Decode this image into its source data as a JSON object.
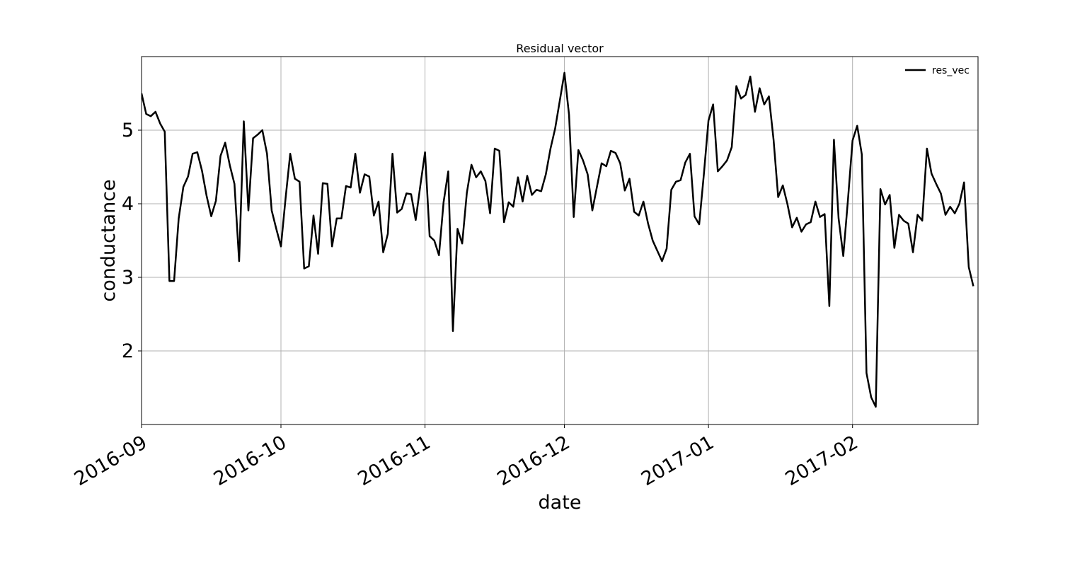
{
  "chart_data": {
    "type": "line",
    "title": "Residual vector",
    "xlabel": "date",
    "ylabel": "conductance",
    "xlim": [
      "2016-09-01",
      "2017-02-28"
    ],
    "ylim": [
      1.0,
      6.0
    ],
    "grid": true,
    "legend_position": "top-right",
    "x_ticks": [
      "2016-09",
      "2016-10",
      "2016-11",
      "2016-12",
      "2017-01",
      "2017-02"
    ],
    "y_ticks": [
      "2",
      "3",
      "4",
      "5"
    ],
    "line_color": "#000000",
    "series": [
      {
        "name": "res_vec",
        "values": [
          [
            "2016-09-01",
            5.5
          ],
          [
            "2016-09-02",
            5.22
          ],
          [
            "2016-09-03",
            5.19
          ],
          [
            "2016-09-04",
            5.25
          ],
          [
            "2016-09-05",
            5.09
          ],
          [
            "2016-09-06",
            4.98
          ],
          [
            "2016-09-07",
            2.95
          ],
          [
            "2016-09-08",
            2.95
          ],
          [
            "2016-09-09",
            3.8
          ],
          [
            "2016-09-10",
            4.23
          ],
          [
            "2016-09-11",
            4.37
          ],
          [
            "2016-09-12",
            4.68
          ],
          [
            "2016-09-13",
            4.7
          ],
          [
            "2016-09-14",
            4.45
          ],
          [
            "2016-09-15",
            4.11
          ],
          [
            "2016-09-16",
            3.83
          ],
          [
            "2016-09-17",
            4.04
          ],
          [
            "2016-09-18",
            4.65
          ],
          [
            "2016-09-19",
            4.83
          ],
          [
            "2016-09-20",
            4.52
          ],
          [
            "2016-09-21",
            4.27
          ],
          [
            "2016-09-22",
            3.22
          ],
          [
            "2016-09-23",
            5.12
          ],
          [
            "2016-09-24",
            3.91
          ],
          [
            "2016-09-25",
            4.89
          ],
          [
            "2016-09-26",
            4.94
          ],
          [
            "2016-09-27",
            5.0
          ],
          [
            "2016-09-28",
            4.68
          ],
          [
            "2016-09-29",
            3.91
          ],
          [
            "2016-09-30",
            3.66
          ],
          [
            "2016-10-01",
            3.42
          ],
          [
            "2016-10-02",
            4.08
          ],
          [
            "2016-10-03",
            4.68
          ],
          [
            "2016-10-04",
            4.34
          ],
          [
            "2016-10-05",
            4.3
          ],
          [
            "2016-10-06",
            3.12
          ],
          [
            "2016-10-07",
            3.15
          ],
          [
            "2016-10-08",
            3.84
          ],
          [
            "2016-10-09",
            3.32
          ],
          [
            "2016-10-10",
            4.28
          ],
          [
            "2016-10-11",
            4.27
          ],
          [
            "2016-10-12",
            3.42
          ],
          [
            "2016-10-13",
            3.8
          ],
          [
            "2016-10-14",
            3.8
          ],
          [
            "2016-10-15",
            4.24
          ],
          [
            "2016-10-16",
            4.22
          ],
          [
            "2016-10-17",
            4.68
          ],
          [
            "2016-10-18",
            4.15
          ],
          [
            "2016-10-19",
            4.4
          ],
          [
            "2016-10-20",
            4.37
          ],
          [
            "2016-10-21",
            3.84
          ],
          [
            "2016-10-22",
            4.03
          ],
          [
            "2016-10-23",
            3.34
          ],
          [
            "2016-10-24",
            3.59
          ],
          [
            "2016-10-25",
            4.68
          ],
          [
            "2016-10-26",
            3.88
          ],
          [
            "2016-10-27",
            3.93
          ],
          [
            "2016-10-28",
            4.14
          ],
          [
            "2016-10-29",
            4.13
          ],
          [
            "2016-10-30",
            3.78
          ],
          [
            "2016-10-31",
            4.25
          ],
          [
            "2016-11-01",
            4.7
          ],
          [
            "2016-11-02",
            3.56
          ],
          [
            "2016-11-03",
            3.5
          ],
          [
            "2016-11-04",
            3.3
          ],
          [
            "2016-11-05",
            4.02
          ],
          [
            "2016-11-06",
            4.44
          ],
          [
            "2016-11-07",
            2.27
          ],
          [
            "2016-11-08",
            3.66
          ],
          [
            "2016-11-09",
            3.46
          ],
          [
            "2016-11-10",
            4.15
          ],
          [
            "2016-11-11",
            4.53
          ],
          [
            "2016-11-12",
            4.36
          ],
          [
            "2016-11-13",
            4.44
          ],
          [
            "2016-11-14",
            4.31
          ],
          [
            "2016-11-15",
            3.87
          ],
          [
            "2016-11-16",
            4.75
          ],
          [
            "2016-11-17",
            4.72
          ],
          [
            "2016-11-18",
            3.75
          ],
          [
            "2016-11-19",
            4.02
          ],
          [
            "2016-11-20",
            3.96
          ],
          [
            "2016-11-21",
            4.36
          ],
          [
            "2016-11-22",
            4.03
          ],
          [
            "2016-11-23",
            4.38
          ],
          [
            "2016-11-24",
            4.12
          ],
          [
            "2016-11-25",
            4.19
          ],
          [
            "2016-11-26",
            4.17
          ],
          [
            "2016-11-27",
            4.4
          ],
          [
            "2016-11-28",
            4.75
          ],
          [
            "2016-11-29",
            5.02
          ],
          [
            "2016-11-30",
            5.4
          ],
          [
            "2016-12-01",
            5.78
          ],
          [
            "2016-12-02",
            5.21
          ],
          [
            "2016-12-03",
            3.82
          ],
          [
            "2016-12-04",
            4.73
          ],
          [
            "2016-12-05",
            4.59
          ],
          [
            "2016-12-06",
            4.4
          ],
          [
            "2016-12-07",
            3.91
          ],
          [
            "2016-12-08",
            4.23
          ],
          [
            "2016-12-09",
            4.55
          ],
          [
            "2016-12-10",
            4.51
          ],
          [
            "2016-12-11",
            4.72
          ],
          [
            "2016-12-12",
            4.69
          ],
          [
            "2016-12-13",
            4.55
          ],
          [
            "2016-12-14",
            4.18
          ],
          [
            "2016-12-15",
            4.34
          ],
          [
            "2016-12-16",
            3.89
          ],
          [
            "2016-12-17",
            3.84
          ],
          [
            "2016-12-18",
            4.03
          ],
          [
            "2016-12-19",
            3.73
          ],
          [
            "2016-12-20",
            3.5
          ],
          [
            "2016-12-21",
            3.36
          ],
          [
            "2016-12-22",
            3.22
          ],
          [
            "2016-12-23",
            3.39
          ],
          [
            "2016-12-24",
            4.19
          ],
          [
            "2016-12-25",
            4.3
          ],
          [
            "2016-12-26",
            4.32
          ],
          [
            "2016-12-27",
            4.56
          ],
          [
            "2016-12-28",
            4.68
          ],
          [
            "2016-12-29",
            3.83
          ],
          [
            "2016-12-30",
            3.72
          ],
          [
            "2016-12-31",
            4.4
          ],
          [
            "2017-01-01",
            5.13
          ],
          [
            "2017-01-02",
            5.35
          ],
          [
            "2017-01-03",
            4.44
          ],
          [
            "2017-01-04",
            4.51
          ],
          [
            "2017-01-05",
            4.59
          ],
          [
            "2017-01-06",
            4.77
          ],
          [
            "2017-01-07",
            5.6
          ],
          [
            "2017-01-08",
            5.43
          ],
          [
            "2017-01-09",
            5.48
          ],
          [
            "2017-01-10",
            5.73
          ],
          [
            "2017-01-11",
            5.25
          ],
          [
            "2017-01-12",
            5.57
          ],
          [
            "2017-01-13",
            5.35
          ],
          [
            "2017-01-14",
            5.46
          ],
          [
            "2017-01-15",
            4.87
          ],
          [
            "2017-01-16",
            4.09
          ],
          [
            "2017-01-17",
            4.25
          ],
          [
            "2017-01-18",
            3.99
          ],
          [
            "2017-01-19",
            3.68
          ],
          [
            "2017-01-20",
            3.81
          ],
          [
            "2017-01-21",
            3.62
          ],
          [
            "2017-01-22",
            3.72
          ],
          [
            "2017-01-23",
            3.75
          ],
          [
            "2017-01-24",
            4.03
          ],
          [
            "2017-01-25",
            3.82
          ],
          [
            "2017-01-26",
            3.86
          ],
          [
            "2017-01-27",
            2.61
          ],
          [
            "2017-01-28",
            4.87
          ],
          [
            "2017-01-29",
            3.8
          ],
          [
            "2017-01-30",
            3.29
          ],
          [
            "2017-01-31",
            4.04
          ],
          [
            "2017-02-01",
            4.86
          ],
          [
            "2017-02-02",
            5.06
          ],
          [
            "2017-02-03",
            4.67
          ],
          [
            "2017-02-04",
            1.7
          ],
          [
            "2017-02-05",
            1.37
          ],
          [
            "2017-02-06",
            1.24
          ],
          [
            "2017-02-07",
            4.2
          ],
          [
            "2017-02-08",
            3.99
          ],
          [
            "2017-02-09",
            4.12
          ],
          [
            "2017-02-10",
            3.4
          ],
          [
            "2017-02-11",
            3.85
          ],
          [
            "2017-02-12",
            3.77
          ],
          [
            "2017-02-13",
            3.73
          ],
          [
            "2017-02-14",
            3.34
          ],
          [
            "2017-02-15",
            3.85
          ],
          [
            "2017-02-16",
            3.77
          ],
          [
            "2017-02-17",
            4.75
          ],
          [
            "2017-02-18",
            4.41
          ],
          [
            "2017-02-19",
            4.27
          ],
          [
            "2017-02-20",
            4.14
          ],
          [
            "2017-02-21",
            3.85
          ],
          [
            "2017-02-22",
            3.96
          ],
          [
            "2017-02-23",
            3.87
          ],
          [
            "2017-02-24",
            4.0
          ],
          [
            "2017-02-25",
            4.29
          ],
          [
            "2017-02-26",
            3.14
          ],
          [
            "2017-02-27",
            2.88
          ]
        ]
      }
    ]
  }
}
